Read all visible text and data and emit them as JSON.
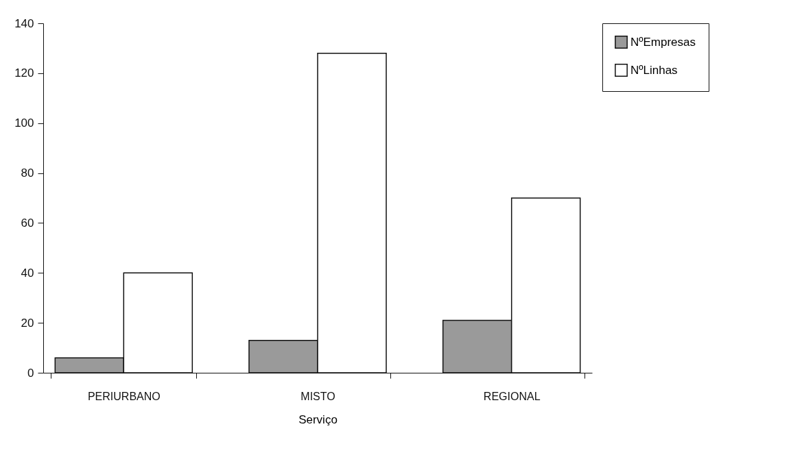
{
  "chart_data": {
    "type": "bar",
    "xlabel": "Serviço",
    "categories": [
      "PERIURBANO",
      "MISTO",
      "REGIONAL"
    ],
    "series": [
      {
        "name": "NºEmpresas",
        "color": "#9a9a9a",
        "values": [
          6,
          13,
          21
        ]
      },
      {
        "name": "NºLinhas",
        "color": "#ffffff",
        "values": [
          40,
          128,
          70
        ]
      }
    ],
    "ylim": [
      0,
      140
    ],
    "yticks": [
      0,
      20,
      40,
      60,
      80,
      100,
      120,
      140
    ],
    "grid": false,
    "legend": "right"
  }
}
